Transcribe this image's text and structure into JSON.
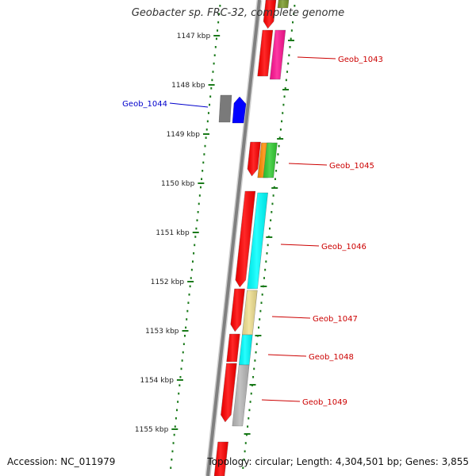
{
  "title": "Geobacter sp. FRC-32, complete genome",
  "accession_label": "Accession: NC_011979",
  "stats_label": "Topology: circular; Length: 4,304,501 bp; Genes: 3,855",
  "ticks": [
    {
      "label": "1147 kbp"
    },
    {
      "label": "1148 kbp"
    },
    {
      "label": "1149 kbp"
    },
    {
      "label": "1150 kbp"
    },
    {
      "label": "1151 kbp"
    },
    {
      "label": "1152 kbp"
    },
    {
      "label": "1153 kbp"
    },
    {
      "label": "1154 kbp"
    },
    {
      "label": "1155 kbp"
    }
  ],
  "gene_labels": [
    {
      "name": "Geob_1043",
      "color": "#cc0000"
    },
    {
      "name": "Geob_1044",
      "color": "#0000cc"
    },
    {
      "name": "Geob_1045",
      "color": "#cc0000"
    },
    {
      "name": "Geob_1046",
      "color": "#cc0000"
    },
    {
      "name": "Geob_1047",
      "color": "#cc0000"
    },
    {
      "name": "Geob_1048",
      "color": "#cc0000"
    },
    {
      "name": "Geob_1049",
      "color": "#cc0000"
    }
  ],
  "colors": {
    "backbone": "#808080",
    "tick_marks": "#1a7a1a",
    "cds": "#ff0000",
    "cds_reverse": "#0000ff",
    "gray_feature": "#7a7a7a",
    "magenta": "#ff1493",
    "olive": "#7a9a2a",
    "orange": "#ff8c00",
    "green": "#32cd32",
    "cyan": "#00ffff",
    "khaki": "#f0e090",
    "silver": "#b8b8b8"
  }
}
